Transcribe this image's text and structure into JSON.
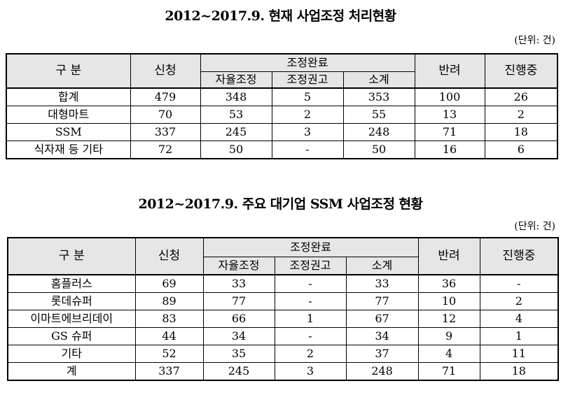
{
  "table1": {
    "title": "2012~2017.9. 현재 사업조정 처리현황",
    "unit": "(단위: 건)",
    "headers": {
      "category": "구 분",
      "applied": "신청",
      "completed": "조정완료",
      "voluntary": "자율조정",
      "recommended": "조정권고",
      "subtotal": "소계",
      "rejected": "반려",
      "ongoing": "진행중"
    },
    "rows": [
      [
        "합계",
        "479",
        "348",
        "5",
        "353",
        "100",
        "26"
      ],
      [
        "대형마트",
        "70",
        "53",
        "2",
        "55",
        "13",
        "2"
      ],
      [
        "SSM",
        "337",
        "245",
        "3",
        "248",
        "71",
        "18"
      ],
      [
        "식자재 등 기타",
        "72",
        "50",
        "-",
        "50",
        "16",
        "6"
      ]
    ]
  },
  "table2": {
    "title": "2012~2017.9. 주요 대기업 SSM 사업조정 현황",
    "unit": "(단위: 건)",
    "headers": {
      "category": "구 분",
      "applied": "신청",
      "completed": "조정완료",
      "voluntary": "자율조정",
      "recommended": "조정권고",
      "subtotal": "소계",
      "rejected": "반려",
      "ongoing": "진행중"
    },
    "rows": [
      [
        "홈플러스",
        "69",
        "33",
        "-",
        "33",
        "36",
        "-"
      ],
      [
        "롯데슈퍼",
        "89",
        "77",
        "-",
        "77",
        "10",
        "2"
      ],
      [
        "이마트에브리데이",
        "83",
        "66",
        "1",
        "67",
        "12",
        "4"
      ],
      [
        "GS 슈퍼",
        "44",
        "34",
        "-",
        "34",
        "9",
        "1"
      ],
      [
        "기타",
        "52",
        "35",
        "2",
        "37",
        "4",
        "11"
      ],
      [
        "계",
        "337",
        "245",
        "3",
        "248",
        "71",
        "18"
      ]
    ]
  }
}
